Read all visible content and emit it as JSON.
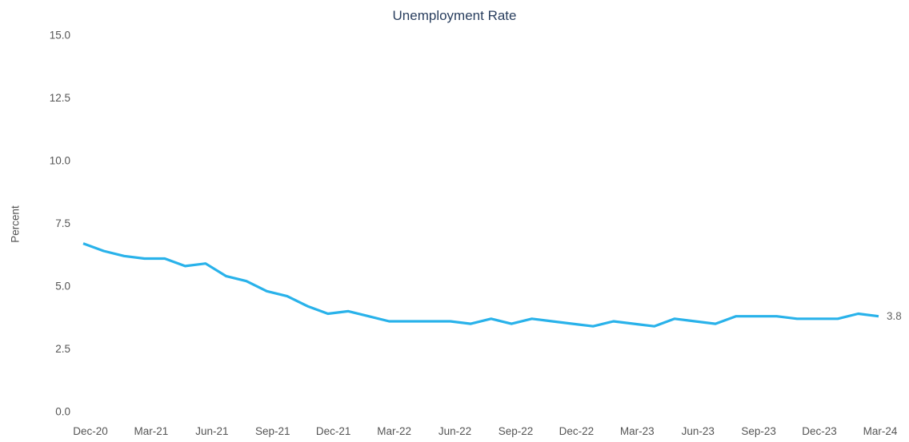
{
  "chart_data": {
    "type": "line",
    "title": "Unemployment Rate",
    "ylabel": "Percent",
    "xlabel": "",
    "line_color": "#29b2ea",
    "grid": false,
    "legend": false,
    "ylim": [
      0.0,
      15.0
    ],
    "yticks": [
      0.0,
      2.5,
      5.0,
      7.5,
      10.0,
      12.5,
      15.0
    ],
    "x_ticks": [
      "Dec-20",
      "Mar-21",
      "Jun-21",
      "Sep-21",
      "Dec-21",
      "Mar-22",
      "Jun-22",
      "Sep-22",
      "Dec-22",
      "Mar-23",
      "Jun-23",
      "Sep-23",
      "Dec-23",
      "Mar-24"
    ],
    "x": [
      "Dec-20",
      "Jan-21",
      "Feb-21",
      "Mar-21",
      "Apr-21",
      "May-21",
      "Jun-21",
      "Jul-21",
      "Aug-21",
      "Sep-21",
      "Oct-21",
      "Nov-21",
      "Dec-21",
      "Jan-22",
      "Feb-22",
      "Mar-22",
      "Apr-22",
      "May-22",
      "Jun-22",
      "Jul-22",
      "Aug-22",
      "Sep-22",
      "Oct-22",
      "Nov-22",
      "Dec-22",
      "Jan-23",
      "Feb-23",
      "Mar-23",
      "Apr-23",
      "May-23",
      "Jun-23",
      "Jul-23",
      "Aug-23",
      "Sep-23",
      "Oct-23",
      "Nov-23",
      "Dec-23",
      "Jan-24",
      "Feb-24",
      "Mar-24"
    ],
    "values": [
      6.7,
      6.4,
      6.2,
      6.1,
      6.1,
      5.8,
      5.9,
      5.4,
      5.2,
      4.8,
      4.6,
      4.2,
      3.9,
      4.0,
      3.8,
      3.6,
      3.6,
      3.6,
      3.6,
      3.5,
      3.7,
      3.5,
      3.7,
      3.6,
      3.5,
      3.4,
      3.6,
      3.5,
      3.4,
      3.7,
      3.6,
      3.5,
      3.8,
      3.8,
      3.8,
      3.7,
      3.7,
      3.7,
      3.9,
      3.8
    ],
    "end_label": "3.8"
  }
}
